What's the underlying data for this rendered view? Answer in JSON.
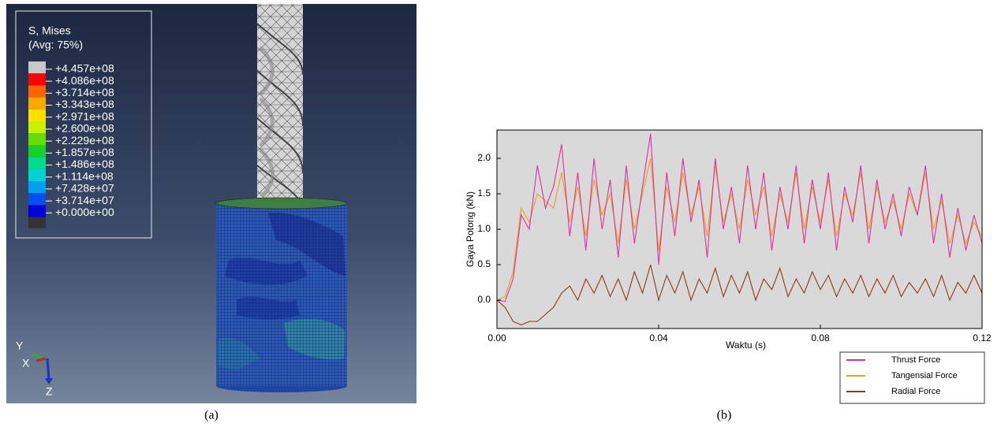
{
  "panel_a": {
    "legend_title": "S, Mises",
    "legend_subtitle": "(Avg: 75%)",
    "legend_labels": [
      "+4.457e+08",
      "+4.086e+08",
      "+3.714e+08",
      "+3.343e+08",
      "+2.971e+08",
      "+2.600e+08",
      "+2.229e+08",
      "+1.857e+08",
      "+1.486e+08",
      "+1.114e+08",
      "+7.428e+07",
      "+3.714e+07",
      "+0.000e+00"
    ],
    "legend_colors": [
      "#c8c8c8",
      "#ff0000",
      "#ff6400",
      "#ffa800",
      "#ffe000",
      "#c8f000",
      "#64dc00",
      "#14d228",
      "#00dc8c",
      "#00d2d2",
      "#00a0f0",
      "#0050f0",
      "#0000dc"
    ],
    "axis_labels": {
      "y": "Y",
      "x": "X",
      "z": "Z"
    }
  },
  "chart_data": {
    "type": "line",
    "x_label": "Waktu (s)",
    "y_label": "Gaya Potong (kN)",
    "x": [
      0,
      0.002,
      0.004,
      0.006,
      0.008,
      0.01,
      0.012,
      0.014,
      0.016,
      0.018,
      0.02,
      0.022,
      0.024,
      0.026,
      0.028,
      0.03,
      0.032,
      0.034,
      0.036,
      0.038,
      0.04,
      0.042,
      0.044,
      0.046,
      0.048,
      0.05,
      0.052,
      0.054,
      0.056,
      0.058,
      0.06,
      0.062,
      0.064,
      0.066,
      0.068,
      0.07,
      0.072,
      0.074,
      0.076,
      0.078,
      0.08,
      0.082,
      0.084,
      0.086,
      0.088,
      0.09,
      0.092,
      0.094,
      0.096,
      0.098,
      0.1,
      0.102,
      0.104,
      0.106,
      0.108,
      0.11,
      0.112,
      0.114,
      0.116,
      0.118,
      0.12
    ],
    "series": [
      {
        "name": "Thrust Force",
        "color": "#e0309a",
        "values": [
          0.0,
          -0.02,
          0.3,
          1.2,
          1.0,
          1.9,
          1.3,
          1.6,
          2.2,
          0.9,
          1.8,
          0.7,
          2.0,
          1.0,
          1.7,
          0.6,
          1.9,
          0.8,
          1.6,
          2.35,
          0.5,
          1.8,
          0.9,
          2.0,
          1.1,
          1.7,
          0.6,
          2.0,
          1.0,
          1.6,
          0.8,
          1.9,
          1.0,
          1.8,
          0.7,
          1.6,
          1.0,
          1.9,
          0.8,
          1.7,
          1.0,
          1.8,
          0.7,
          1.6,
          1.1,
          1.9,
          0.8,
          1.7,
          1.0,
          1.5,
          0.9,
          1.6,
          1.2,
          1.9,
          0.8,
          1.5,
          0.6,
          1.3,
          0.7,
          1.2,
          0.8
        ]
      },
      {
        "name": "Tangensial Force",
        "color": "#eaa020",
        "values": [
          0.0,
          0.05,
          0.4,
          1.3,
          1.1,
          1.5,
          1.4,
          1.3,
          1.8,
          1.1,
          1.6,
          0.9,
          1.7,
          1.2,
          1.5,
          0.8,
          1.7,
          1.0,
          1.5,
          2.0,
          0.7,
          1.6,
          1.1,
          1.8,
          1.2,
          1.6,
          0.9,
          1.9,
          1.1,
          1.5,
          1.0,
          1.7,
          1.2,
          1.6,
          0.9,
          1.5,
          1.1,
          1.8,
          1.0,
          1.6,
          1.1,
          1.7,
          0.9,
          1.5,
          1.2,
          1.8,
          1.0,
          1.6,
          1.1,
          1.4,
          1.0,
          1.5,
          1.2,
          1.8,
          1.0,
          1.4,
          0.8,
          1.2,
          0.8,
          1.1,
          0.9
        ]
      },
      {
        "name": "Radial Force",
        "color": "#8b3a1a",
        "values": [
          0.0,
          -0.1,
          -0.3,
          -0.35,
          -0.3,
          -0.3,
          -0.2,
          -0.1,
          0.1,
          0.2,
          0.0,
          0.3,
          0.1,
          0.35,
          0.05,
          0.3,
          0.0,
          0.4,
          0.1,
          0.5,
          0.0,
          0.35,
          0.1,
          0.4,
          0.0,
          0.3,
          0.1,
          0.45,
          0.05,
          0.35,
          0.1,
          0.4,
          0.0,
          0.3,
          0.15,
          0.45,
          0.05,
          0.3,
          0.1,
          0.4,
          0.15,
          0.35,
          0.05,
          0.3,
          0.1,
          0.35,
          0.05,
          0.3,
          0.1,
          0.35,
          0.05,
          0.25,
          0.1,
          0.3,
          0.05,
          0.35,
          0.0,
          0.25,
          0.1,
          0.35,
          0.1
        ]
      }
    ],
    "xlim": [
      0,
      0.12
    ],
    "ylim": [
      -0.4,
      2.4
    ],
    "xticks": [
      {
        "value": 0,
        "label": "0.00"
      },
      0.04,
      0.08,
      0.12
    ],
    "yticks": [
      {
        "value": 0,
        "label": "0.0"
      },
      0.5,
      {
        "value": 1,
        "label": "1.0"
      },
      1.5,
      {
        "value": 2,
        "label": "2.0"
      }
    ],
    "background": "#d9d9d9",
    "legend": "lower right"
  },
  "captions": [
    "(a)",
    "(b)"
  ]
}
